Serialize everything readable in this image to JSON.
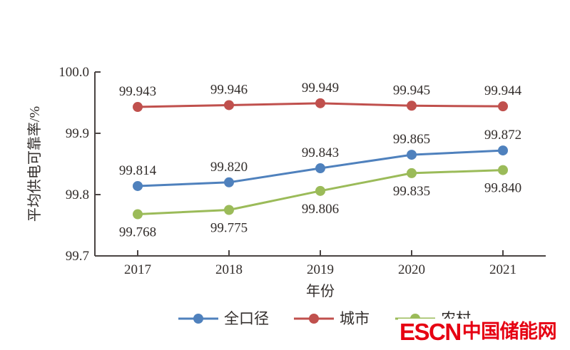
{
  "chart_data": {
    "type": "line",
    "categories": [
      "2017",
      "2018",
      "2019",
      "2020",
      "2021"
    ],
    "series": [
      {
        "name": "全口径",
        "color": "#4F81BD",
        "values": [
          99.814,
          99.82,
          99.843,
          99.865,
          99.872
        ],
        "labels": [
          "99.814",
          "99.820",
          "99.843",
          "99.865",
          "99.872"
        ],
        "label_position": "above"
      },
      {
        "name": "城市",
        "color": "#C0504D",
        "values": [
          99.943,
          99.946,
          99.949,
          99.945,
          99.944
        ],
        "labels": [
          "99.943",
          "99.946",
          "99.949",
          "99.945",
          "99.944"
        ],
        "label_position": "above"
      },
      {
        "name": "农村",
        "color": "#9BBB59",
        "values": [
          99.768,
          99.775,
          99.806,
          99.835,
          99.84
        ],
        "labels": [
          "99.768",
          "99.775",
          "99.806",
          "99.835",
          "99.840"
        ],
        "label_position": "below"
      }
    ],
    "title": "",
    "xlabel": "年份",
    "ylabel": "平均供电可靠率/%",
    "ylim": [
      99.7,
      100.0
    ],
    "yticks": [
      100.0,
      99.9,
      99.8,
      99.7
    ],
    "ytick_labels": [
      "100.0",
      "99.9",
      "99.8",
      "99.7"
    ],
    "grid": false,
    "legend_position": "bottom"
  },
  "watermark": {
    "text_en": "ESCN",
    "text_zh": "中国储能网",
    "color": "#E60012"
  }
}
